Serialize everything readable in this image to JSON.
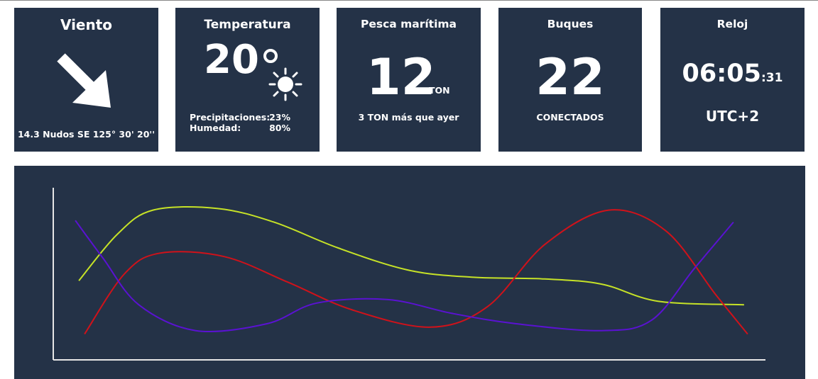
{
  "colors": {
    "card_bg": "#243247",
    "text": "#ffffff",
    "series_yellow": "#c6e227",
    "series_red": "#d0121a",
    "series_purple": "#5a12d2",
    "axis": "#e6e6e6"
  },
  "viento": {
    "title": "Viento",
    "arrow_icon": "arrow-down-right-icon",
    "info": "14.3 Nudos SE 125° 30' 20''"
  },
  "temperatura": {
    "title": "Temperatura",
    "value": "20",
    "degree_icon": "degree-icon",
    "weather_icon": "sun-icon",
    "precip_label": "Precipitaciones:",
    "precip_value": "23%",
    "humidity_label": "Humedad:",
    "humidity_value": "80%"
  },
  "pesca": {
    "title": "Pesca marítima",
    "value": "12",
    "unit": "TON",
    "note": "3 TON más que ayer"
  },
  "buques": {
    "title": "Buques",
    "value": "22",
    "note": "CONECTADOS"
  },
  "reloj": {
    "title": "Reloj",
    "time": "06:05",
    "seconds": ":31",
    "timezone": "UTC+2"
  },
  "chart_data": {
    "type": "line",
    "title": "",
    "xlabel": "",
    "ylabel": "",
    "xlim": [
      0,
      1
    ],
    "ylim": [
      0,
      1
    ],
    "grid": false,
    "legend": "none",
    "series": [
      {
        "color": "#c6e227",
        "points": [
          [
            0.036,
            0.46
          ],
          [
            0.09,
            0.73
          ],
          [
            0.14,
            0.87
          ],
          [
            0.23,
            0.88
          ],
          [
            0.31,
            0.8
          ],
          [
            0.4,
            0.65
          ],
          [
            0.5,
            0.52
          ],
          [
            0.59,
            0.48
          ],
          [
            0.69,
            0.47
          ],
          [
            0.77,
            0.44
          ],
          [
            0.85,
            0.34
          ],
          [
            0.97,
            0.32
          ]
        ]
      },
      {
        "color": "#d0121a",
        "points": [
          [
            0.044,
            0.15
          ],
          [
            0.1,
            0.5
          ],
          [
            0.15,
            0.62
          ],
          [
            0.24,
            0.6
          ],
          [
            0.33,
            0.45
          ],
          [
            0.42,
            0.29
          ],
          [
            0.53,
            0.19
          ],
          [
            0.61,
            0.31
          ],
          [
            0.69,
            0.67
          ],
          [
            0.78,
            0.87
          ],
          [
            0.86,
            0.75
          ],
          [
            0.93,
            0.38
          ],
          [
            0.975,
            0.15
          ]
        ]
      },
      {
        "color": "#5a12d2",
        "points": [
          [
            0.031,
            0.81
          ],
          [
            0.07,
            0.59
          ],
          [
            0.12,
            0.32
          ],
          [
            0.2,
            0.17
          ],
          [
            0.3,
            0.21
          ],
          [
            0.37,
            0.33
          ],
          [
            0.47,
            0.35
          ],
          [
            0.56,
            0.27
          ],
          [
            0.65,
            0.21
          ],
          [
            0.77,
            0.17
          ],
          [
            0.84,
            0.23
          ],
          [
            0.9,
            0.53
          ],
          [
            0.955,
            0.8
          ]
        ]
      }
    ]
  }
}
